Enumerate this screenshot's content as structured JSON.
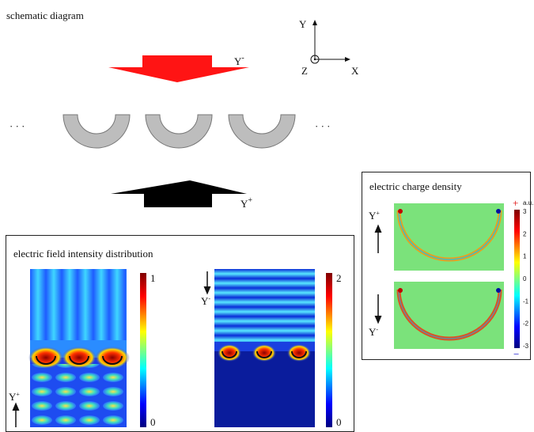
{
  "schematic": {
    "title": "schematic diagram",
    "axes": {
      "y": "Y",
      "x": "X",
      "z": "Z"
    },
    "arrow_top": {
      "label": "Y",
      "sup": "-"
    },
    "arrow_bottom": {
      "label": "Y",
      "sup": "+"
    },
    "ellipsis_left": "· · ·",
    "ellipsis_right": "· · ·"
  },
  "field_panel": {
    "title": "electric field intensity distribution",
    "left": {
      "colorbar_max": "1",
      "colorbar_min": "0",
      "direction": {
        "label": "Y",
        "sup": "+"
      }
    },
    "right": {
      "colorbar_max": "2",
      "colorbar_min": "0",
      "direction": {
        "label": "Y",
        "sup": "-"
      }
    }
  },
  "charge_panel": {
    "title": "electric charge density",
    "colorbar": {
      "unit": "a.u.",
      "plus": "+",
      "minus": "−",
      "ticks": [
        "3",
        "2",
        "1",
        "0",
        "-1",
        "-2",
        "-3"
      ]
    },
    "top": {
      "direction": {
        "label": "Y",
        "sup": "+"
      }
    },
    "bottom": {
      "direction": {
        "label": "Y",
        "sup": "-"
      }
    }
  }
}
